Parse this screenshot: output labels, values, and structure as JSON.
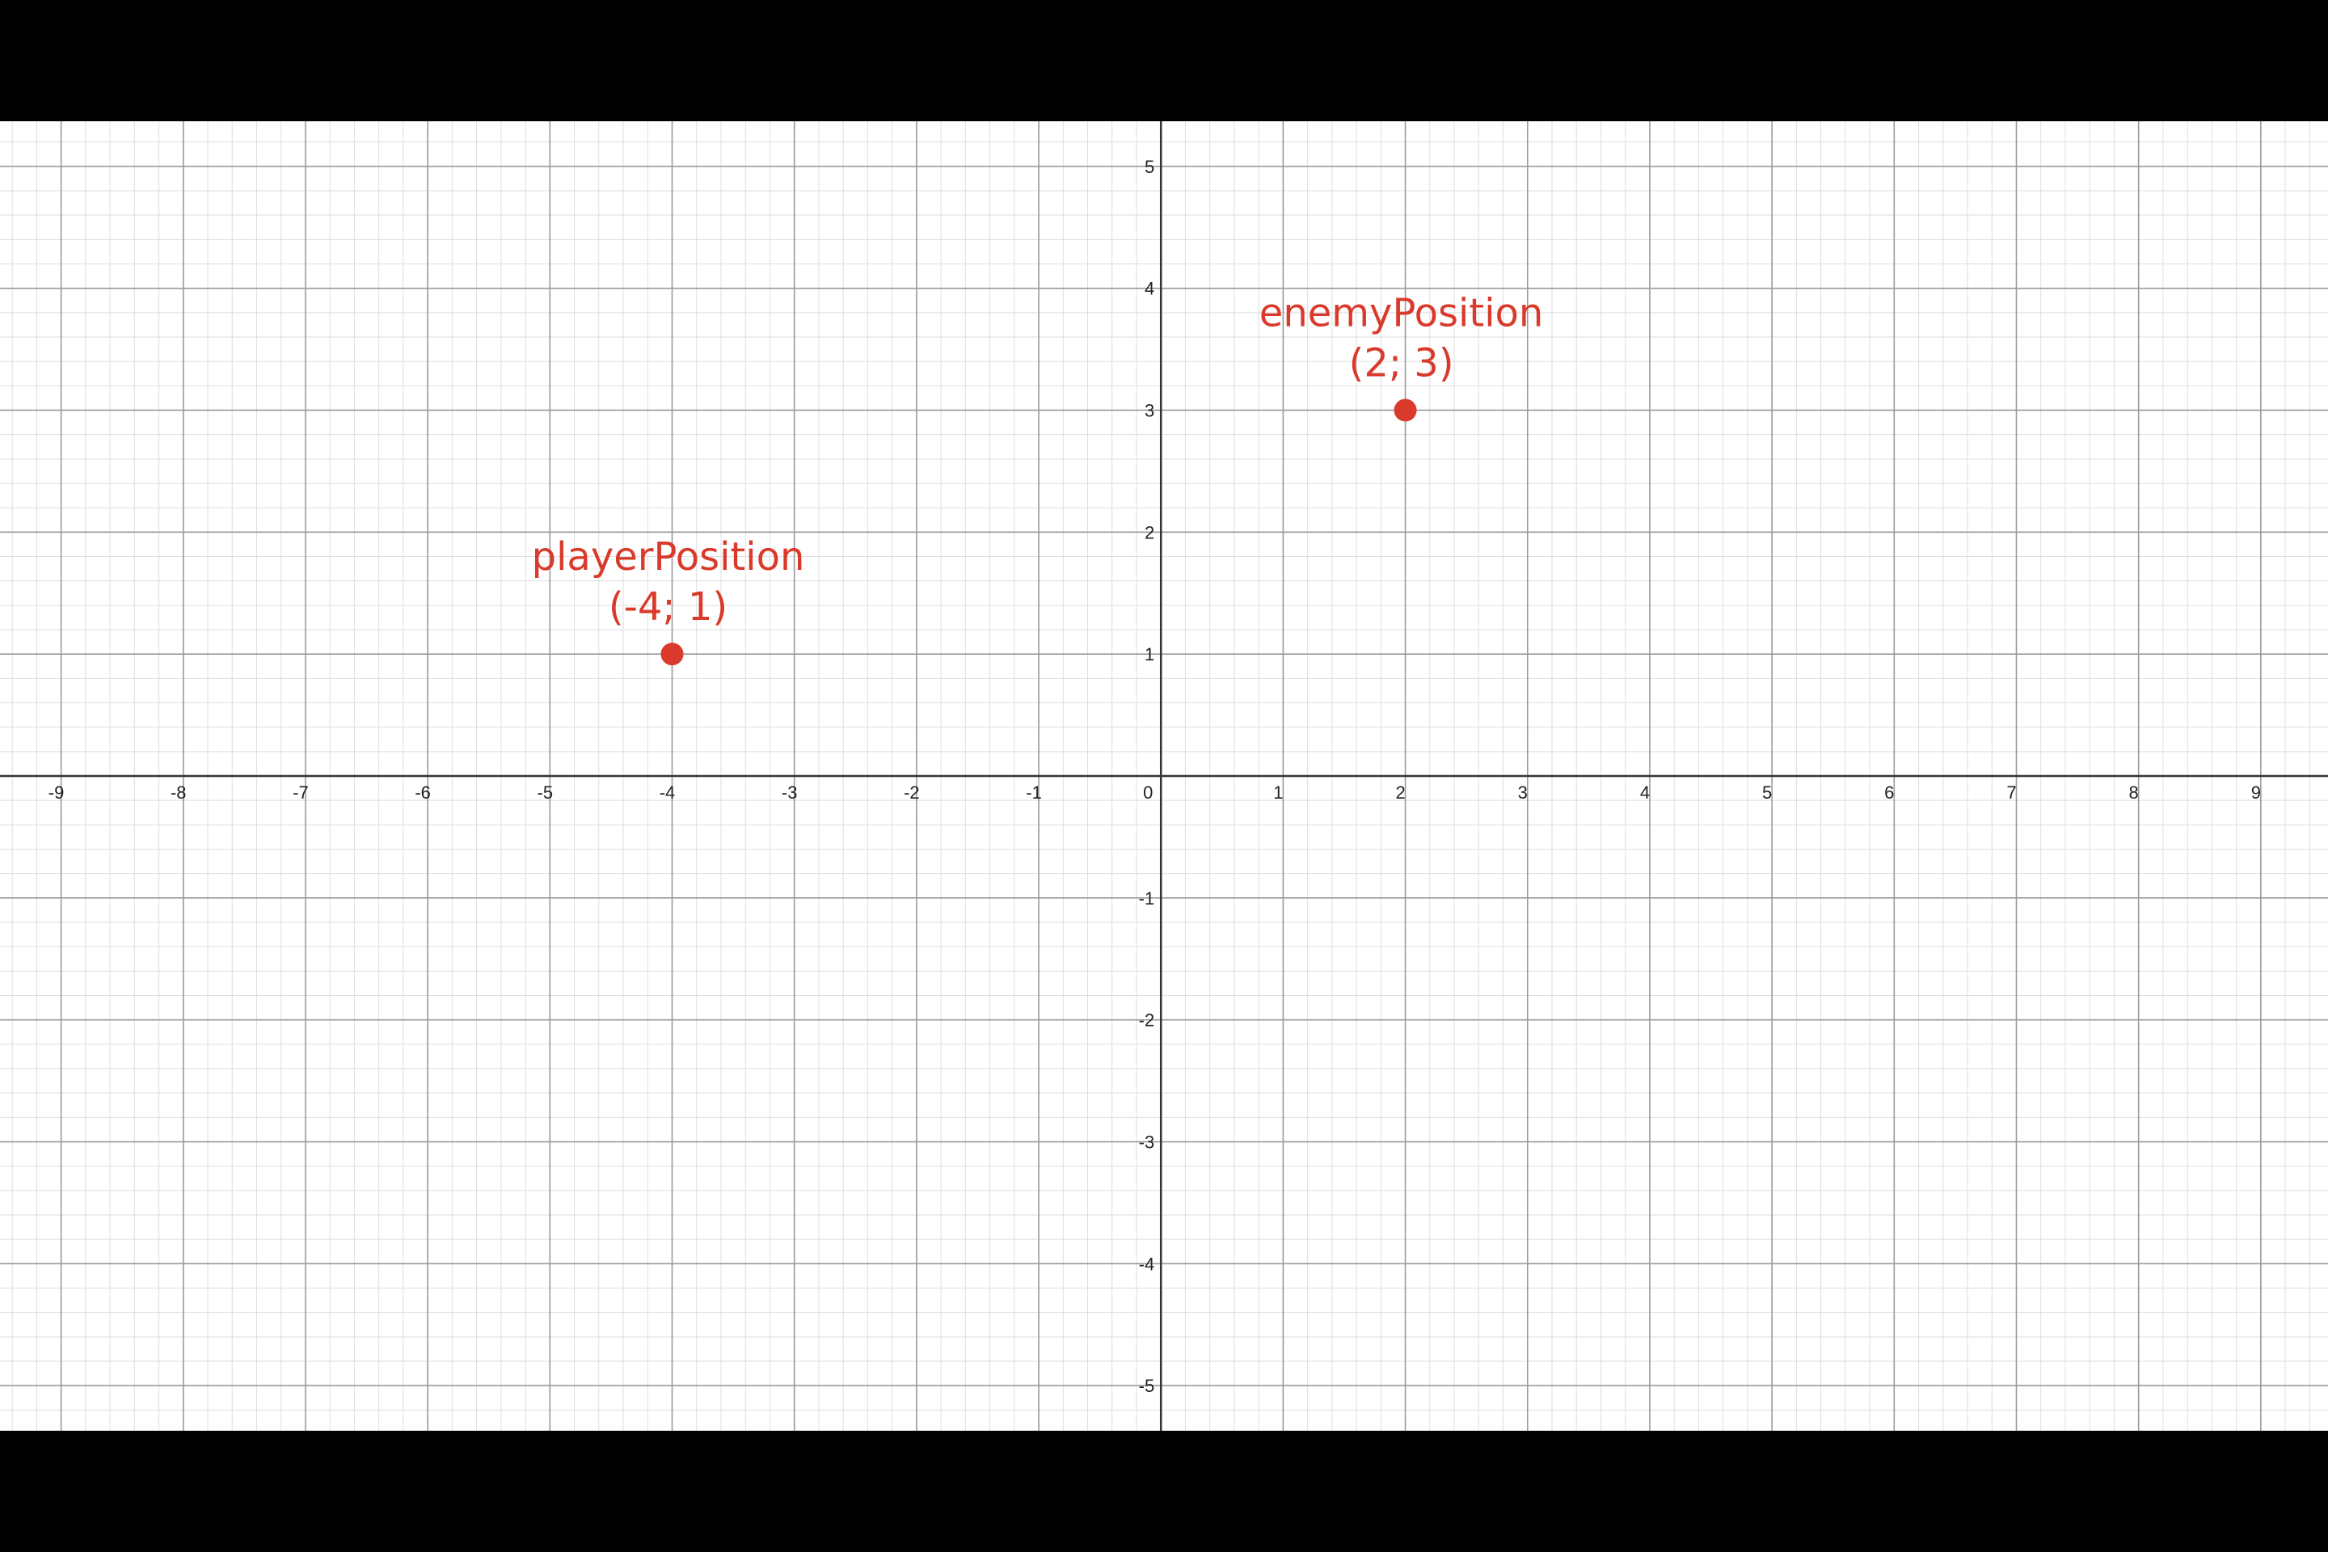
{
  "chart_data": {
    "type": "scatter",
    "title": "",
    "xlabel": "",
    "ylabel": "",
    "xlim": [
      -9.5,
      9.55
    ],
    "ylim": [
      -5.37,
      5.37
    ],
    "grid": true,
    "minor_grid_per_unit": 5,
    "x_ticks": [
      {
        "value": -9,
        "label": "-9"
      },
      {
        "value": -8,
        "label": "-8"
      },
      {
        "value": -7,
        "label": "-7"
      },
      {
        "value": -6,
        "label": "-6"
      },
      {
        "value": -5,
        "label": "-5"
      },
      {
        "value": -4,
        "label": "-4"
      },
      {
        "value": -3,
        "label": "-3"
      },
      {
        "value": -2,
        "label": "-2"
      },
      {
        "value": -1,
        "label": "-1"
      },
      {
        "value": 0,
        "label": "0"
      },
      {
        "value": 1,
        "label": "1"
      },
      {
        "value": 2,
        "label": "2"
      },
      {
        "value": 3,
        "label": "3"
      },
      {
        "value": 4,
        "label": "4"
      },
      {
        "value": 5,
        "label": "5"
      },
      {
        "value": 6,
        "label": "6"
      },
      {
        "value": 7,
        "label": "7"
      },
      {
        "value": 8,
        "label": "8"
      },
      {
        "value": 9,
        "label": "9"
      }
    ],
    "y_ticks": [
      {
        "value": 5,
        "label": "5"
      },
      {
        "value": 4,
        "label": "4"
      },
      {
        "value": 3,
        "label": "3"
      },
      {
        "value": 2,
        "label": "2"
      },
      {
        "value": 1,
        "label": "1"
      },
      {
        "value": -1,
        "label": "-1"
      },
      {
        "value": -2,
        "label": "-2"
      },
      {
        "value": -3,
        "label": "-3"
      },
      {
        "value": -4,
        "label": "-4"
      },
      {
        "value": -5,
        "label": "-5"
      }
    ],
    "points": [
      {
        "name": "playerPosition",
        "coords_label": "(-4; 1)",
        "x": -4,
        "y": 1
      },
      {
        "name": "enemyPosition",
        "coords_label": "(2; 3)",
        "x": 2,
        "y": 3
      }
    ],
    "colors": {
      "point": "#d93a2b",
      "axis": "#333333",
      "major_grid": "#9a9a9a",
      "minor_grid": "#dedede",
      "background": "#ffffff",
      "letterbox": "#000000"
    }
  }
}
